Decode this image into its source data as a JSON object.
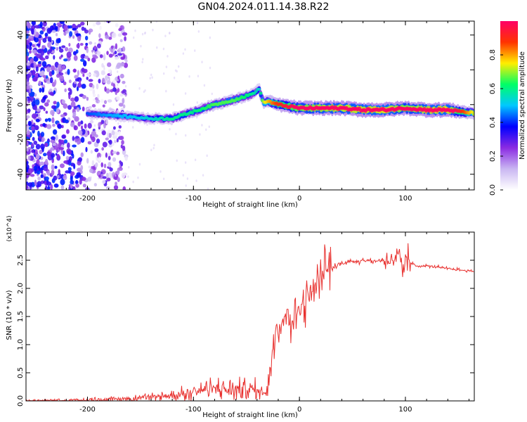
{
  "title": "GN04.2024.011.14.38.R22",
  "chart_data": [
    {
      "type": "heatmap",
      "xlabel": "Height of straight line (km)",
      "ylabel": "Frequency (Hz)",
      "xlim": [
        -258,
        165
      ],
      "ylim": [
        -49,
        48
      ],
      "xticks": [
        -200,
        -100,
        0,
        100
      ],
      "yticks": [
        -40,
        -20,
        0,
        20,
        40
      ],
      "colorbar": {
        "label": "Normalized spectral amplitude",
        "range": [
          0.0,
          1.0
        ],
        "ticks": [
          0.0,
          0.2,
          0.4,
          0.6,
          0.8
        ],
        "colors": [
          "#ffffff",
          "#c9b6f2",
          "#8a2be2",
          "#0000ff",
          "#00c8ff",
          "#00ff66",
          "#ffee00",
          "#ff3300",
          "#ff0066"
        ]
      },
      "ridge": {
        "x": [
          -200,
          -180,
          -160,
          -140,
          -120,
          -100,
          -80,
          -60,
          -45,
          -38,
          -34,
          -30,
          -20,
          -10,
          0,
          20,
          40,
          60,
          80,
          100,
          120,
          140,
          165
        ],
        "frequency": [
          -5,
          -6,
          -7,
          -8,
          -8,
          -4,
          0,
          3,
          6,
          9,
          1,
          2,
          0,
          -1,
          -2,
          -2,
          -2,
          -3,
          -3,
          -2,
          -3,
          -3,
          -5
        ],
        "amplitude": [
          0.35,
          0.4,
          0.42,
          0.45,
          0.5,
          0.5,
          0.55,
          0.55,
          0.5,
          0.45,
          0.6,
          0.65,
          0.75,
          0.8,
          0.85,
          0.88,
          0.9,
          0.9,
          0.92,
          0.85,
          0.9,
          0.92,
          0.6
        ]
      }
    },
    {
      "type": "line",
      "xlabel": "Height of straight line (km)",
      "ylabel": "SNR (10 * v/v)",
      "y_multiplier": "(x10^4)",
      "xlim": [
        -258,
        165
      ],
      "ylim": [
        0.0,
        3.0
      ],
      "xticks": [
        -200,
        -100,
        0,
        100
      ],
      "yticks": [
        0.0,
        0.5,
        1.0,
        1.5,
        2.0,
        2.5
      ],
      "series": [
        {
          "color": "#e8312f",
          "x": [
            -258,
            -220,
            -200,
            -180,
            -160,
            -140,
            -120,
            -110,
            -100,
            -90,
            -80,
            -70,
            -60,
            -50,
            -40,
            -35,
            -30,
            -28,
            -25,
            -22,
            -20,
            -15,
            -10,
            -5,
            0,
            5,
            10,
            15,
            20,
            25,
            30,
            40,
            50,
            60,
            70,
            80,
            85,
            90,
            95,
            98,
            100,
            105,
            110,
            120,
            130,
            140,
            150,
            165
          ],
          "y": [
            0.0,
            0.01,
            0.02,
            0.03,
            0.04,
            0.06,
            0.1,
            0.12,
            0.18,
            0.2,
            0.22,
            0.2,
            0.2,
            0.22,
            0.18,
            0.15,
            0.2,
            0.5,
            1.0,
            1.4,
            1.2,
            1.5,
            1.6,
            1.4,
            1.7,
            1.75,
            1.9,
            2.0,
            2.2,
            2.3,
            2.35,
            2.45,
            2.48,
            2.5,
            2.48,
            2.5,
            2.5,
            2.52,
            2.55,
            2.1,
            2.6,
            2.45,
            2.4,
            2.4,
            2.38,
            2.35,
            2.33,
            2.3
          ]
        }
      ]
    }
  ]
}
